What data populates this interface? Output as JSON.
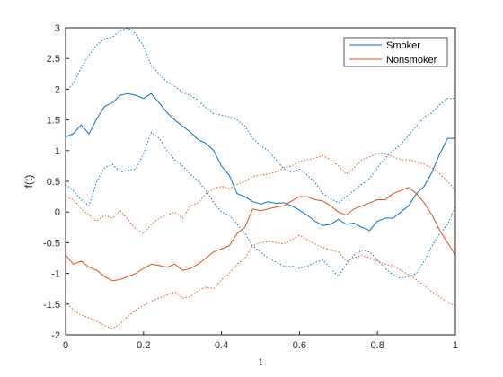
{
  "chart_data": {
    "type": "line",
    "title": "",
    "xlabel": "t",
    "ylabel": "f(t)",
    "xlim": [
      0,
      1
    ],
    "ylim": [
      -2,
      3
    ],
    "xticks": [
      0,
      0.2,
      0.4,
      0.6,
      0.8,
      1
    ],
    "xtick_labels": [
      "0",
      "0.2",
      "0.4",
      "0.6",
      "0.8",
      "1"
    ],
    "yticks": [
      -2,
      -1.5,
      -1,
      -0.5,
      0,
      0.5,
      1,
      1.5,
      2,
      2.5,
      3
    ],
    "ytick_labels": [
      "-2",
      "-1.5",
      "-1",
      "-0.5",
      "0",
      "0.5",
      "1",
      "1.5",
      "2",
      "2.5",
      "3"
    ],
    "grid": false,
    "legend_position": "top-right",
    "series": [
      {
        "name": "Smoker",
        "color": "#0072BD",
        "style": "solid",
        "x": [
          0,
          0.02,
          0.04,
          0.06,
          0.08,
          0.1,
          0.12,
          0.14,
          0.16,
          0.18,
          0.2,
          0.22,
          0.24,
          0.26,
          0.28,
          0.3,
          0.32,
          0.34,
          0.36,
          0.38,
          0.4,
          0.42,
          0.44,
          0.46,
          0.48,
          0.5,
          0.52,
          0.54,
          0.56,
          0.58,
          0.6,
          0.62,
          0.64,
          0.66,
          0.68,
          0.7,
          0.72,
          0.74,
          0.76,
          0.78,
          0.8,
          0.82,
          0.84,
          0.86,
          0.88,
          0.9,
          0.92,
          0.94,
          0.96,
          0.98,
          1.0
        ],
        "y": [
          1.22,
          1.28,
          1.42,
          1.27,
          1.52,
          1.72,
          1.78,
          1.9,
          1.93,
          1.9,
          1.85,
          1.93,
          1.78,
          1.62,
          1.5,
          1.4,
          1.3,
          1.18,
          1.12,
          1.0,
          0.75,
          0.6,
          0.3,
          0.25,
          0.17,
          0.13,
          0.17,
          0.14,
          0.15,
          0.1,
          0.03,
          -0.05,
          -0.15,
          -0.22,
          -0.2,
          -0.12,
          -0.2,
          -0.18,
          -0.25,
          -0.3,
          -0.15,
          -0.1,
          -0.1,
          0.0,
          0.1,
          0.3,
          0.42,
          0.65,
          0.95,
          1.2,
          1.2
        ]
      },
      {
        "name": "",
        "color": "#0072BD",
        "style": "dotted",
        "x": [
          0,
          0.02,
          0.04,
          0.06,
          0.08,
          0.1,
          0.12,
          0.14,
          0.16,
          0.18,
          0.2,
          0.22,
          0.24,
          0.26,
          0.28,
          0.3,
          0.32,
          0.34,
          0.36,
          0.38,
          0.4,
          0.42,
          0.44,
          0.46,
          0.48,
          0.5,
          0.52,
          0.54,
          0.56,
          0.58,
          0.6,
          0.62,
          0.64,
          0.66,
          0.68,
          0.7,
          0.72,
          0.74,
          0.76,
          0.78,
          0.8,
          0.82,
          0.84,
          0.86,
          0.88,
          0.9,
          0.92,
          0.94,
          0.96,
          0.98,
          1.0
        ],
        "y": [
          1.95,
          2.1,
          2.35,
          2.55,
          2.72,
          2.82,
          2.85,
          2.95,
          3.0,
          2.9,
          2.7,
          2.38,
          2.25,
          2.12,
          2.05,
          1.95,
          1.9,
          1.82,
          1.7,
          1.6,
          1.58,
          1.55,
          1.5,
          1.4,
          1.2,
          1.08,
          1.0,
          0.85,
          0.7,
          0.65,
          0.7,
          0.6,
          0.48,
          0.3,
          0.22,
          0.15,
          0.25,
          0.35,
          0.45,
          0.55,
          0.72,
          0.88,
          1.0,
          1.1,
          1.25,
          1.4,
          1.55,
          1.62,
          1.75,
          1.85,
          1.85
        ]
      },
      {
        "name": "",
        "color": "#0072BD",
        "style": "dotted",
        "x": [
          0,
          0.02,
          0.04,
          0.06,
          0.08,
          0.1,
          0.12,
          0.14,
          0.16,
          0.18,
          0.2,
          0.22,
          0.24,
          0.26,
          0.28,
          0.3,
          0.32,
          0.34,
          0.36,
          0.38,
          0.4,
          0.42,
          0.44,
          0.46,
          0.48,
          0.5,
          0.52,
          0.54,
          0.56,
          0.58,
          0.6,
          0.62,
          0.64,
          0.66,
          0.68,
          0.7,
          0.72,
          0.74,
          0.76,
          0.78,
          0.8,
          0.82,
          0.84,
          0.86,
          0.88,
          0.9,
          0.92,
          0.94,
          0.96,
          0.98,
          1.0
        ],
        "y": [
          0.45,
          0.35,
          0.2,
          0.1,
          0.5,
          0.72,
          0.78,
          0.65,
          0.68,
          0.7,
          0.95,
          1.3,
          1.2,
          1.0,
          0.85,
          0.75,
          0.62,
          0.5,
          0.35,
          0.15,
          0.0,
          -0.05,
          -0.2,
          -0.35,
          -0.55,
          -0.65,
          -0.75,
          -0.82,
          -0.88,
          -0.88,
          -0.92,
          -0.88,
          -0.82,
          -0.78,
          -0.92,
          -1.05,
          -0.85,
          -0.7,
          -0.62,
          -0.65,
          -0.78,
          -0.92,
          -1.02,
          -1.08,
          -1.05,
          -1.0,
          -0.8,
          -0.55,
          -0.35,
          -0.2,
          0.08
        ]
      },
      {
        "name": "Nonsmoker",
        "color": "#D95319",
        "style": "solid",
        "x": [
          0,
          0.02,
          0.04,
          0.06,
          0.08,
          0.1,
          0.12,
          0.14,
          0.16,
          0.18,
          0.2,
          0.22,
          0.24,
          0.26,
          0.28,
          0.3,
          0.32,
          0.34,
          0.36,
          0.38,
          0.4,
          0.42,
          0.44,
          0.46,
          0.48,
          0.5,
          0.52,
          0.54,
          0.56,
          0.58,
          0.6,
          0.62,
          0.64,
          0.66,
          0.68,
          0.7,
          0.72,
          0.74,
          0.76,
          0.78,
          0.8,
          0.82,
          0.84,
          0.86,
          0.88,
          0.9,
          0.92,
          0.94,
          0.96,
          0.98,
          1.0
        ],
        "y": [
          -0.7,
          -0.85,
          -0.8,
          -0.9,
          -0.95,
          -1.05,
          -1.12,
          -1.1,
          -1.05,
          -1.0,
          -0.92,
          -0.85,
          -0.87,
          -0.9,
          -0.85,
          -0.95,
          -0.92,
          -0.85,
          -0.75,
          -0.65,
          -0.6,
          -0.55,
          -0.35,
          -0.25,
          0.05,
          0.02,
          0.05,
          0.08,
          0.1,
          0.18,
          0.25,
          0.25,
          0.2,
          0.18,
          0.1,
          0.0,
          -0.05,
          0.05,
          0.1,
          0.15,
          0.2,
          0.2,
          0.3,
          0.35,
          0.4,
          0.3,
          0.15,
          -0.05,
          -0.3,
          -0.5,
          -0.7
        ]
      },
      {
        "name": "",
        "color": "#D95319",
        "style": "dotted",
        "x": [
          0,
          0.02,
          0.04,
          0.06,
          0.08,
          0.1,
          0.12,
          0.14,
          0.16,
          0.18,
          0.2,
          0.22,
          0.24,
          0.26,
          0.28,
          0.3,
          0.32,
          0.34,
          0.36,
          0.38,
          0.4,
          0.42,
          0.44,
          0.46,
          0.48,
          0.5,
          0.52,
          0.54,
          0.56,
          0.58,
          0.6,
          0.62,
          0.64,
          0.66,
          0.68,
          0.7,
          0.72,
          0.74,
          0.76,
          0.78,
          0.8,
          0.82,
          0.84,
          0.86,
          0.88,
          0.9,
          0.92,
          0.94,
          0.96,
          0.98,
          1.0
        ],
        "y": [
          0.25,
          0.2,
          0.05,
          -0.05,
          -0.15,
          -0.05,
          -0.1,
          0.02,
          -0.12,
          -0.28,
          -0.35,
          -0.2,
          -0.1,
          -0.05,
          0.0,
          -0.1,
          0.1,
          0.15,
          0.3,
          0.38,
          0.42,
          0.38,
          0.45,
          0.5,
          0.58,
          0.6,
          0.62,
          0.65,
          0.72,
          0.75,
          0.82,
          0.85,
          0.88,
          0.92,
          0.85,
          0.75,
          0.62,
          0.72,
          0.85,
          0.9,
          0.95,
          0.95,
          0.9,
          0.85,
          0.85,
          0.82,
          0.78,
          0.72,
          0.62,
          0.5,
          0.35
        ]
      },
      {
        "name": "",
        "color": "#D95319",
        "style": "dotted",
        "x": [
          0,
          0.02,
          0.04,
          0.06,
          0.08,
          0.1,
          0.12,
          0.14,
          0.16,
          0.18,
          0.2,
          0.22,
          0.24,
          0.26,
          0.28,
          0.3,
          0.32,
          0.34,
          0.36,
          0.38,
          0.4,
          0.42,
          0.44,
          0.46,
          0.48,
          0.5,
          0.52,
          0.54,
          0.56,
          0.58,
          0.6,
          0.62,
          0.64,
          0.66,
          0.68,
          0.7,
          0.72,
          0.74,
          0.76,
          0.78,
          0.8,
          0.82,
          0.84,
          0.86,
          0.88,
          0.9,
          0.92,
          0.94,
          0.96,
          0.98,
          1.0
        ],
        "y": [
          -1.45,
          -1.6,
          -1.68,
          -1.72,
          -1.78,
          -1.85,
          -1.9,
          -1.82,
          -1.7,
          -1.6,
          -1.52,
          -1.45,
          -1.4,
          -1.35,
          -1.3,
          -1.4,
          -1.38,
          -1.28,
          -1.22,
          -1.25,
          -1.1,
          -1.0,
          -0.85,
          -0.75,
          -0.55,
          -0.5,
          -0.48,
          -0.5,
          -0.52,
          -0.45,
          -0.38,
          -0.45,
          -0.52,
          -0.58,
          -0.62,
          -0.65,
          -0.8,
          -0.75,
          -0.7,
          -0.75,
          -0.8,
          -0.85,
          -0.88,
          -0.95,
          -1.02,
          -1.1,
          -1.2,
          -1.3,
          -1.38,
          -1.48,
          -1.52
        ]
      }
    ]
  }
}
